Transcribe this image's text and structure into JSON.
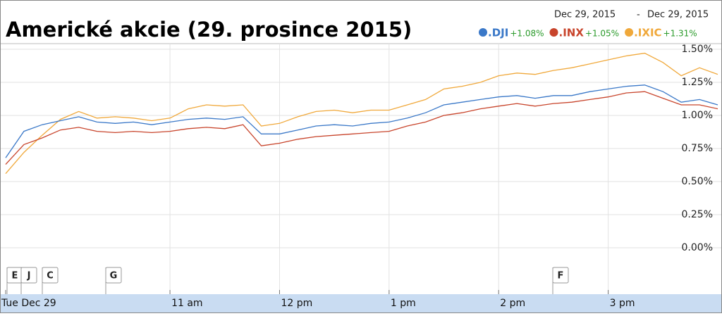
{
  "chart_data": {
    "type": "line",
    "title": "Americké akcie (29. prosince 2015)",
    "date_range": {
      "start": "Dec 29, 2015",
      "separator": "-",
      "end": "Dec 29, 2015"
    },
    "categories": [
      "Tue Dec 29",
      null,
      null,
      null,
      null,
      null,
      null,
      null,
      null,
      "11 am",
      null,
      null,
      null,
      null,
      null,
      "12 pm",
      null,
      null,
      null,
      null,
      null,
      "1 pm",
      null,
      null,
      null,
      null,
      null,
      "2 pm",
      null,
      null,
      null,
      null,
      null,
      "3 pm",
      null,
      null,
      null,
      null,
      null,
      null
    ],
    "series": [
      {
        "name": ".DJI",
        "change_label": "+1.08%",
        "color": "#3a78c8",
        "values": [
          0.68,
          0.88,
          0.93,
          0.96,
          0.99,
          0.95,
          0.94,
          0.95,
          0.93,
          0.95,
          0.97,
          0.98,
          0.97,
          0.99,
          0.86,
          0.86,
          0.89,
          0.92,
          0.93,
          0.92,
          0.94,
          0.95,
          0.98,
          1.02,
          1.08,
          1.1,
          1.12,
          1.14,
          1.15,
          1.13,
          1.15,
          1.15,
          1.18,
          1.2,
          1.22,
          1.23,
          1.18,
          1.1,
          1.12,
          1.08
        ]
      },
      {
        "name": ".INX",
        "change_label": "+1.05%",
        "color": "#c8442b",
        "values": [
          0.63,
          0.78,
          0.83,
          0.89,
          0.91,
          0.88,
          0.87,
          0.88,
          0.87,
          0.88,
          0.9,
          0.91,
          0.9,
          0.93,
          0.77,
          0.79,
          0.82,
          0.84,
          0.85,
          0.86,
          0.87,
          0.88,
          0.92,
          0.95,
          1.0,
          1.02,
          1.05,
          1.07,
          1.09,
          1.07,
          1.09,
          1.1,
          1.12,
          1.14,
          1.17,
          1.18,
          1.13,
          1.08,
          1.08,
          1.05
        ]
      },
      {
        "name": ".IXIC",
        "change_label": "+1.31%",
        "color": "#f0a83a",
        "values": [
          0.56,
          0.72,
          0.85,
          0.97,
          1.03,
          0.98,
          0.99,
          0.98,
          0.96,
          0.98,
          1.05,
          1.08,
          1.07,
          1.08,
          0.92,
          0.94,
          0.99,
          1.03,
          1.04,
          1.02,
          1.04,
          1.04,
          1.08,
          1.12,
          1.2,
          1.22,
          1.25,
          1.3,
          1.32,
          1.31,
          1.34,
          1.36,
          1.39,
          1.42,
          1.45,
          1.47,
          1.4,
          1.3,
          1.36,
          1.31
        ]
      }
    ],
    "ylim": [
      0,
      1.5
    ],
    "yticks": [
      {
        "value": 0,
        "label": "0.00%"
      },
      {
        "value": 0.25,
        "label": "0.25%"
      },
      {
        "value": 0.5,
        "label": "0.50%"
      },
      {
        "value": 0.75,
        "label": "0.75%"
      },
      {
        "value": 1,
        "label": "1.00%"
      },
      {
        "value": 1.25,
        "label": "1.25%"
      },
      {
        "value": 1.5,
        "label": "1.50%"
      }
    ],
    "grid": true,
    "event_flags": [
      "E",
      "J",
      "C",
      "G",
      "F"
    ]
  }
}
